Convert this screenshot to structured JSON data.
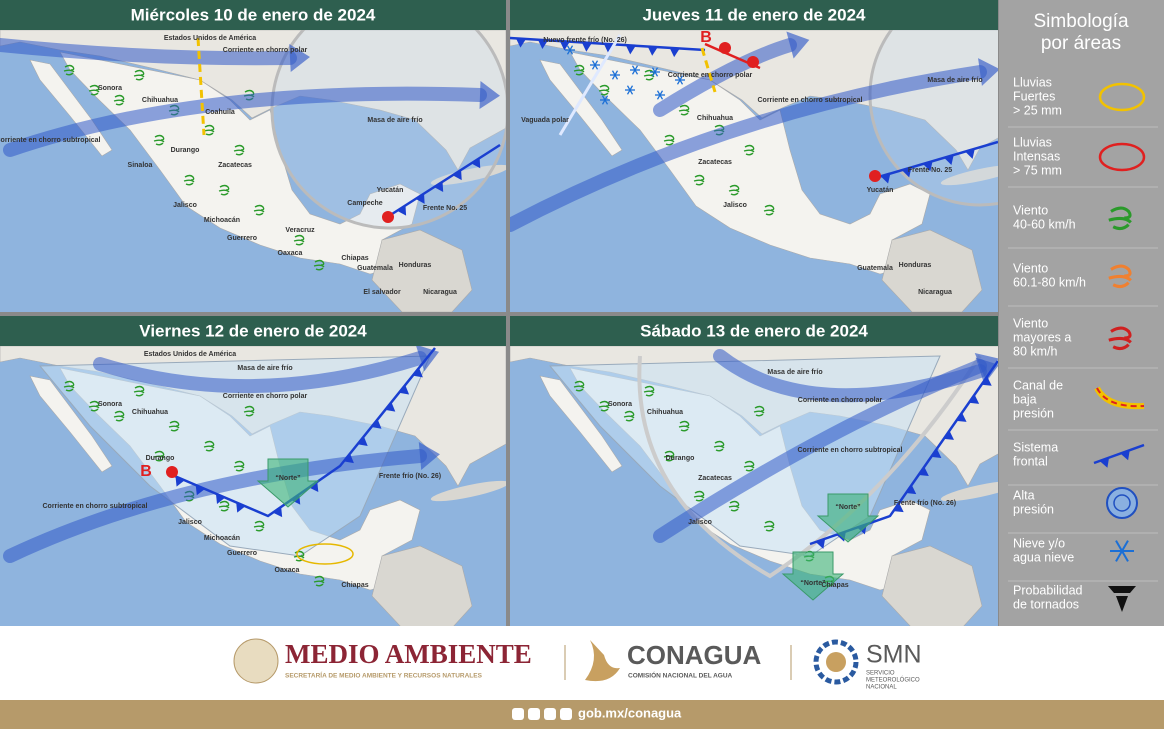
{
  "panels": [
    {
      "title": "Miércoles 10 de enero de 2024",
      "labels": [
        "Estados Unidos de América",
        "Corriente en chorro polar",
        "Sonora",
        "Chihuahua",
        "Coahuila",
        "Sinaloa",
        "Durango",
        "Zacatecas",
        "Jalisco",
        "Michoacán",
        "Guerrero",
        "Veracruz",
        "Oaxaca",
        "Chiapas",
        "Yucatán",
        "Campeche",
        "Guatemala",
        "Honduras",
        "El salvador",
        "Nicaragua",
        "Masa de aire frío",
        "Corriente en chorro subtropical",
        "Frente No. 25"
      ]
    },
    {
      "title": "Jueves 11 de enero de 2024",
      "labels": [
        "Nuevo frente frío (No. 26)",
        "Vaguada polar",
        "Corriente en chorro polar",
        "Masa de aire frío",
        "Corriente en chorro subtropical",
        "Frente No. 25",
        "Yucatán",
        "Chihuahua",
        "Zacatecas",
        "Jalisco",
        "Guatemala",
        "Honduras",
        "Nicaragua",
        "B"
      ]
    },
    {
      "title": "Viernes 12 de enero de 2024",
      "labels": [
        "Estados Unidos de América",
        "Masa de aire frío",
        "Corriente en chorro polar",
        "Frente frío (No. 26)",
        "“Norte”",
        "Corriente en chorro subtropical",
        "Sonora",
        "Chihuahua",
        "Durango",
        "Jalisco",
        "Michoacán",
        "Guerrero",
        "Oaxaca",
        "Chiapas",
        "B"
      ]
    },
    {
      "title": "Sábado 13 de enero de 2024",
      "labels": [
        "Masa de aire frío",
        "Corriente en chorro polar",
        "Corriente en chorro subtropical",
        "Frente frío (No. 26)",
        "“Norte”",
        "“Norte”",
        "Sonora",
        "Chihuahua",
        "Durango",
        "Zacatecas",
        "Jalisco",
        "Chiapas"
      ]
    }
  ],
  "legend": {
    "title": [
      "Simbología",
      "por áreas"
    ],
    "items": [
      [
        "Lluvias",
        "Fuertes",
        "> 25 mm"
      ],
      [
        "Lluvias",
        "Intensas",
        "> 75 mm"
      ],
      [
        "Viento",
        "40-60 km/h"
      ],
      [
        "Viento",
        "60.1-80 km/h"
      ],
      [
        "Viento",
        "mayores a",
        "80 km/h"
      ],
      [
        "Canal de",
        "baja",
        "presión"
      ],
      [
        "Sistema",
        "frontal"
      ],
      [
        "Alta",
        "presión"
      ],
      [
        "Nieve y/o",
        "agua nieve"
      ],
      [
        "Probabilidad",
        "de tornados"
      ]
    ]
  },
  "footer": {
    "semarnat": "MEDIO AMBIENTE",
    "semarnat_sub": "SECRETARÍA DE MEDIO AMBIENTE Y RECURSOS NATURALES",
    "conagua": "CONAGUA",
    "conagua_sub": "COMISIÓN NACIONAL DEL AGUA",
    "smn": "SMN",
    "smn_sub": [
      "SERVICIO",
      "METEOROLÓGICO",
      "NACIONAL"
    ],
    "url": "gob.mx/conagua"
  }
}
